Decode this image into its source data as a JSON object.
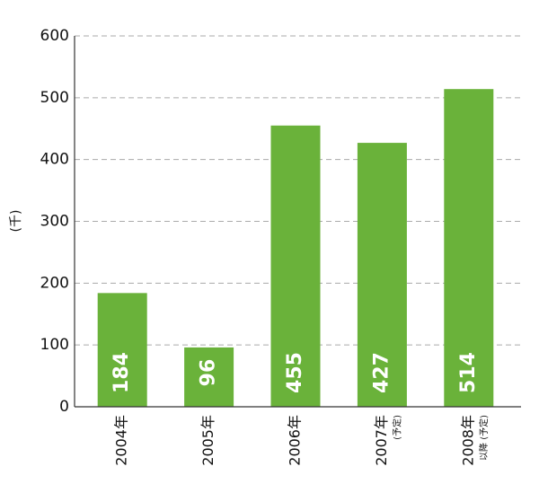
{
  "chart_data": {
    "type": "bar",
    "y_label": "(千)",
    "categories": [
      "2004年",
      "2005年",
      "2006年",
      "2007年",
      "2008年"
    ],
    "category_notes": [
      null,
      null,
      null,
      "(予定)",
      "以降 (予定)"
    ],
    "values": [
      184,
      96,
      455,
      427,
      514
    ],
    "color": "#6ab23a",
    "ylim": [
      0,
      600
    ],
    "yticks": [
      0,
      100,
      200,
      300,
      400,
      500,
      600
    ],
    "grid": true
  }
}
